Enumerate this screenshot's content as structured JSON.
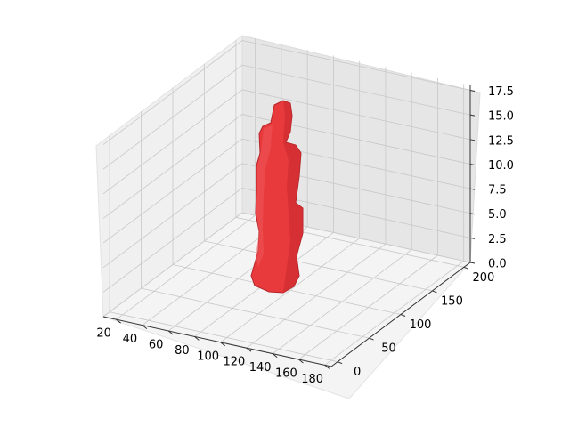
{
  "chart_data": {
    "type": "3d-voxel",
    "title": "",
    "xlabel": "",
    "ylabel": "",
    "zlabel": "",
    "xlim": [
      10,
      185
    ],
    "ylim": [
      -10,
      210
    ],
    "zlim": [
      0,
      18
    ],
    "x_ticks": [
      "20",
      "40",
      "60",
      "80",
      "100",
      "120",
      "140",
      "160",
      "180"
    ],
    "y_ticks": [
      "0",
      "50",
      "100",
      "150",
      "200"
    ],
    "z_ticks": [
      "0.0",
      "2.5",
      "5.0",
      "7.5",
      "10.0",
      "12.5",
      "15.0",
      "17.5"
    ],
    "grid": true,
    "series": [
      {
        "color": "#e8393c",
        "extent": {
          "x": [
            60,
            110
          ],
          "y": [
            100,
            140
          ],
          "z": [
            0,
            17.5
          ]
        }
      }
    ]
  }
}
